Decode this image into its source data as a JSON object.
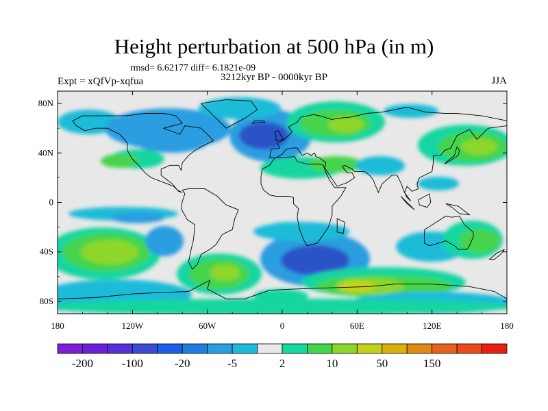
{
  "title": "Height perturbation at 500 hPa (in m)",
  "stats": "rmsd= 6.62177 diff= 6.1821e-09",
  "experiment": "Expt = xQfVp-xqfua",
  "period": "3212kyr BP - 0000kyr BP",
  "season": "JJA",
  "lat_ticks": [
    "80N",
    "40N",
    "0",
    "40S",
    "80S"
  ],
  "lon_ticks": [
    "180",
    "120W",
    "60W",
    "0",
    "60E",
    "120E",
    "180"
  ],
  "colorbar": {
    "colors": [
      "#7c1ed6",
      "#6a20d8",
      "#5630d8",
      "#3a4ad6",
      "#1c5ee8",
      "#1f7ee0",
      "#2a9ee0",
      "#1cbcd8",
      "#e8e8e8",
      "#18d6a0",
      "#44d44c",
      "#8ed62c",
      "#c6d21a",
      "#d8b20a",
      "#e08a12",
      "#e8601c",
      "#e84a18",
      "#e82014"
    ],
    "labels": [
      "-200",
      "-100",
      "-20",
      "-5",
      "2",
      "10",
      "50",
      "150"
    ]
  },
  "colors": {
    "background": "#e8e8e8",
    "strong_neg": "#2a52c8",
    "mid_neg": "#2a9ee0",
    "weak_neg": "#1cbcd8",
    "weak_pos": "#18d6a0",
    "mid_pos": "#44d44c",
    "strong_pos": "#8ed62c",
    "peak_pos": "#c6d21a",
    "orange_pos": "#e08a12"
  }
}
